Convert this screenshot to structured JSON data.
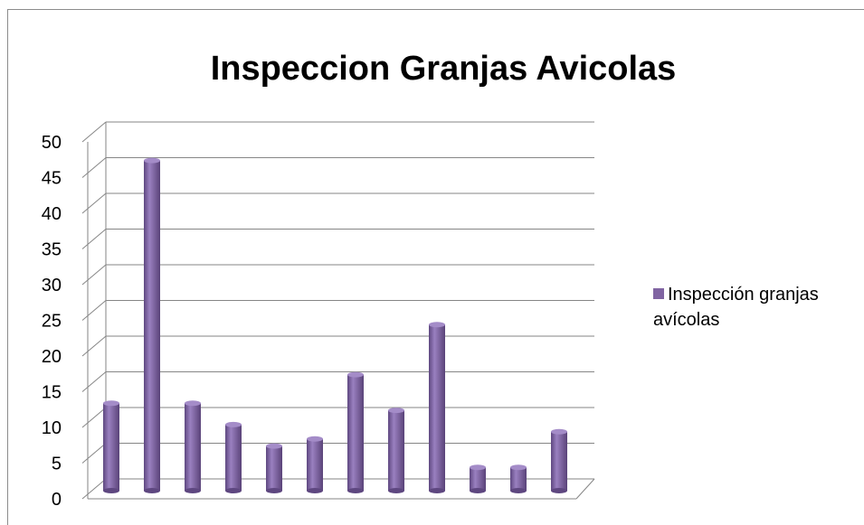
{
  "chart_data": {
    "type": "bar",
    "title": "Inspeccion Granjas Avicolas",
    "categories": [
      null,
      null,
      null,
      null,
      null,
      null,
      null,
      null,
      null,
      null,
      null,
      null
    ],
    "series": [
      {
        "name": "Inspección granjas avícolas",
        "color": "#8064a2",
        "values": [
          12,
          46,
          12,
          9,
          6,
          7,
          16,
          11,
          23,
          3,
          3,
          8
        ]
      }
    ],
    "ylim": [
      0,
      50
    ],
    "yticks": [
      0,
      5,
      10,
      15,
      20,
      25,
      30,
      35,
      40,
      45,
      50
    ],
    "grid": true,
    "legend": "right"
  }
}
